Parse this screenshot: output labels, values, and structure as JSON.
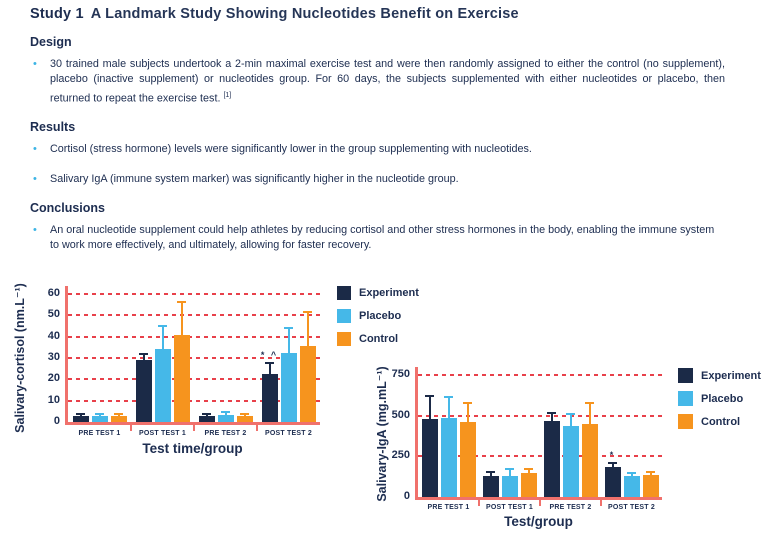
{
  "title": {
    "prefix": "Study 1",
    "text": "A Landmark Study Showing Nucleotides Benefit on Exercise"
  },
  "icons": {
    "bullet": "•"
  },
  "colors": {
    "text": "#1d2d50",
    "bullet": "#3cb4e5",
    "gridline": "#e8404a",
    "axis": "#f0716c",
    "experiment": "#1b2a47",
    "placebo": "#45b8e8",
    "control": "#f6941e"
  },
  "sections": {
    "design": {
      "heading": "Design",
      "bullets": [
        {
          "text": "30 trained male subjects undertook a 2-min maximal exercise test and were then randomly assigned to either the control (no supplement), placebo (inactive supplement) or nucleotides group. For 60 days, the subjects supplemented with either nucleotides or placebo, then returned to repeat the exercise test. ",
          "sup": "[1]"
        }
      ]
    },
    "results": {
      "heading": "Results",
      "bullets": [
        {
          "text": "Cortisol (stress hormone) levels were significantly lower in the group supplementing with nucleotides."
        },
        {
          "text": "Salivary IgA (immune system marker) was significantly higher in the nucleotide group."
        }
      ]
    },
    "conclusions": {
      "heading": "Conclusions",
      "bullets": [
        {
          "text": "An oral nucleotide supplement could help athletes by reducing cortisol and other stress hormones in the body, enabling the immune system to work more effectively, and ultimately, allowing for faster recovery."
        }
      ]
    }
  },
  "chart_data": [
    {
      "type": "bar",
      "title": "",
      "ylabel": "Salivary-cortisol (nm.L⁻¹)",
      "xlabel": "Test time/group",
      "categories": [
        "PRE TEST 1",
        "POST TEST 1",
        "PRE TEST 2",
        "POST TEST 2"
      ],
      "series": [
        {
          "name": "Experiment",
          "color": "#1b2a47",
          "values": [
            3,
            29,
            3,
            22.5
          ],
          "errors": [
            1.2,
            3.2,
            1.2,
            5.5
          ]
        },
        {
          "name": "Placebo",
          "color": "#45b8e8",
          "values": [
            3,
            34,
            3.5,
            32.5
          ],
          "errors": [
            1.2,
            11.5,
            1.8,
            12
          ]
        },
        {
          "name": "Control",
          "color": "#f6941e",
          "values": [
            3,
            41,
            3,
            35.5
          ],
          "errors": [
            1.2,
            15.5,
            1.2,
            16.5
          ]
        }
      ],
      "ylim": [
        0,
        60
      ],
      "yticks": [
        0,
        10,
        20,
        30,
        40,
        50,
        60
      ],
      "grid": "horizontal-dashed-red",
      "legend_position": "right-top",
      "annotations": [
        {
          "category": 3,
          "series": 0,
          "text": "* ^"
        }
      ]
    },
    {
      "type": "bar",
      "title": "",
      "ylabel": "Salivary-IgA (mg.mL⁻¹)",
      "xlabel": "Test/group",
      "categories": [
        "PRE TEST 1",
        "POST TEST 1",
        "PRE TEST 2",
        "POST TEST 2"
      ],
      "series": [
        {
          "name": "Experiment",
          "color": "#1b2a47",
          "values": [
            480,
            132,
            468,
            183
          ],
          "errors": [
            150,
            30,
            52,
            32
          ]
        },
        {
          "name": "Placebo",
          "color": "#45b8e8",
          "values": [
            487,
            130,
            435,
            130
          ],
          "errors": [
            132,
            47,
            80,
            25
          ]
        },
        {
          "name": "Control",
          "color": "#f6941e",
          "values": [
            460,
            147,
            450,
            135
          ],
          "errors": [
            125,
            33,
            135,
            25
          ]
        }
      ],
      "ylim": [
        0,
        750
      ],
      "yticks": [
        0,
        250,
        500,
        750
      ],
      "grid": "horizontal-dashed-red",
      "legend_position": "right-top",
      "annotations": [
        {
          "category": 3,
          "series": 0,
          "text": "*"
        }
      ]
    }
  ]
}
